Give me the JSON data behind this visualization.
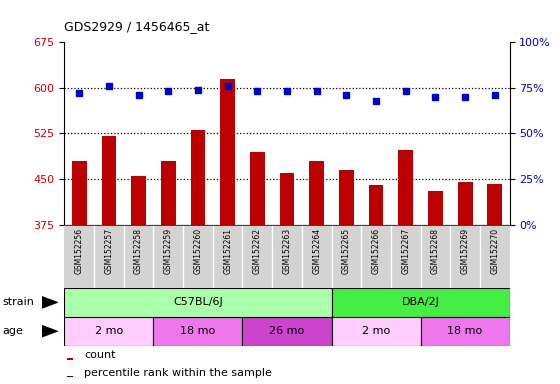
{
  "title": "GDS2929 / 1456465_at",
  "samples": [
    "GSM152256",
    "GSM152257",
    "GSM152258",
    "GSM152259",
    "GSM152260",
    "GSM152261",
    "GSM152262",
    "GSM152263",
    "GSM152264",
    "GSM152265",
    "GSM152266",
    "GSM152267",
    "GSM152268",
    "GSM152269",
    "GSM152270"
  ],
  "counts": [
    480,
    520,
    455,
    480,
    530,
    615,
    495,
    460,
    480,
    465,
    440,
    497,
    430,
    445,
    442
  ],
  "percentile_ranks": [
    72,
    76,
    71,
    73,
    74,
    76,
    73,
    73,
    73,
    71,
    68,
    73,
    70,
    70,
    71
  ],
  "ylim_left": [
    375,
    675
  ],
  "ylim_right": [
    0,
    100
  ],
  "yticks_left": [
    375,
    450,
    525,
    600,
    675
  ],
  "yticks_right": [
    0,
    25,
    50,
    75,
    100
  ],
  "bar_color": "#bb0000",
  "dot_color": "#0000cc",
  "dotted_line_values": [
    450,
    525,
    600
  ],
  "strain_groups": [
    {
      "label": "C57BL/6J",
      "start": 0,
      "end": 9,
      "color": "#aaffaa"
    },
    {
      "label": "DBA/2J",
      "start": 9,
      "end": 15,
      "color": "#44ee44"
    }
  ],
  "age_groups": [
    {
      "label": "2 mo",
      "start": 0,
      "end": 3,
      "color": "#ffccff"
    },
    {
      "label": "18 mo",
      "start": 3,
      "end": 6,
      "color": "#ee77ee"
    },
    {
      "label": "26 mo",
      "start": 6,
      "end": 9,
      "color": "#cc44cc"
    },
    {
      "label": "2 mo",
      "start": 9,
      "end": 12,
      "color": "#ffccff"
    },
    {
      "label": "18 mo",
      "start": 12,
      "end": 15,
      "color": "#ee77ee"
    }
  ],
  "legend_count_color": "#bb0000",
  "legend_pct_color": "#0000cc"
}
